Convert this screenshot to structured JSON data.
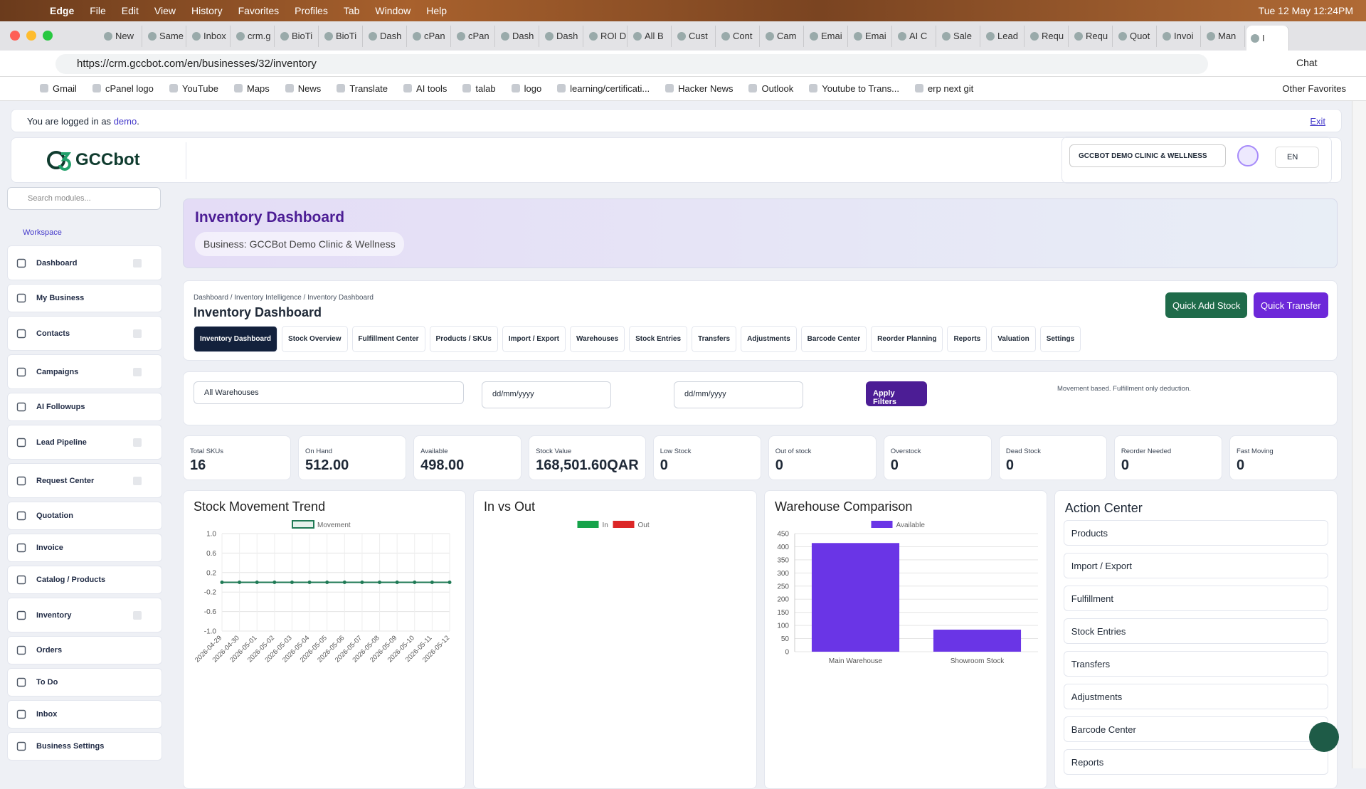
{
  "menubar": {
    "items": [
      "Edge",
      "File",
      "Edit",
      "View",
      "History",
      "Favorites",
      "Profiles",
      "Tab",
      "Window",
      "Help"
    ],
    "clock": "Tue 12 May  12:24PM"
  },
  "tabs": [
    "New",
    "Same",
    "Inbox",
    "crm.g",
    "BioTi",
    "BioTi",
    "Dash",
    "cPan",
    "cPan",
    "Dash",
    "Dash",
    "ROI D",
    "All B",
    "Cust",
    "Cont",
    "Cam",
    "Emai",
    "Emai",
    "AI C",
    "Sale",
    "Lead",
    "Requ",
    "Requ",
    "Quot",
    "Invoi",
    "Man",
    "I"
  ],
  "address": {
    "url": "https://crm.gccbot.com/en/businesses/32/inventory",
    "chat": "Chat"
  },
  "bookmarks": {
    "items": [
      "Gmail",
      "cPanel logo",
      "YouTube",
      "Maps",
      "News",
      "Translate",
      "AI tools",
      "talab",
      "logo",
      "learning/certificati...",
      "Hacker News",
      "Outlook",
      "Youtube to Trans...",
      "erp next git"
    ],
    "other": "Other Favorites"
  },
  "login": {
    "text": "You are logged in as",
    "user": "demo",
    "after": ".",
    "exit": "Exit"
  },
  "topbar": {
    "logo": "GCCbot",
    "business": "GCCBOT DEMO CLINIC & WELLNESS",
    "language": "EN"
  },
  "sidebar": {
    "search": "Search modules...",
    "section": "Workspace",
    "items": [
      {
        "label": "Dashboard",
        "expandable": true
      },
      {
        "label": "My Business",
        "expandable": false
      },
      {
        "label": "Contacts",
        "expandable": true
      },
      {
        "label": "Campaigns",
        "expandable": true
      },
      {
        "label": "AI Followups",
        "expandable": false
      },
      {
        "label": "Lead Pipeline",
        "expandable": true
      },
      {
        "label": "Request Center",
        "expandable": true
      },
      {
        "label": "Quotation",
        "expandable": false
      },
      {
        "label": "Invoice",
        "expandable": false
      },
      {
        "label": "Catalog / Products",
        "expandable": false
      },
      {
        "label": "Inventory",
        "expandable": true
      },
      {
        "label": "Orders",
        "expandable": false
      },
      {
        "label": "To Do",
        "expandable": false
      },
      {
        "label": "Inbox",
        "expandable": false
      },
      {
        "label": "Business Settings",
        "expandable": false
      }
    ]
  },
  "header": {
    "title": "Inventory Dashboard",
    "business": "Business: GCCBot Demo Clinic & Wellness"
  },
  "panel": {
    "breadcrumb": "Dashboard / Inventory Intelligence / Inventory Dashboard",
    "title": "Inventory Dashboard",
    "buttons": [
      "Quick Add Stock",
      "Quick Transfer"
    ],
    "tabs": [
      "Inventory Dashboard",
      "Stock Overview",
      "Fulfillment Center",
      "Products / SKUs",
      "Import / Export",
      "Warehouses",
      "Stock Entries",
      "Transfers",
      "Adjustments",
      "Barcode Center",
      "Reorder Planning",
      "Reports",
      "Valuation",
      "Settings"
    ]
  },
  "filters": {
    "warehouse": "All Warehouses",
    "date_from": "dd/mm/yyyy",
    "date_to": "dd/mm/yyyy",
    "apply": "Apply Filters",
    "note": "Movement based. Fulfillment only deduction."
  },
  "kpis": [
    {
      "label": "Total SKUs",
      "value": "16"
    },
    {
      "label": "On Hand",
      "value": "512.00"
    },
    {
      "label": "Available",
      "value": "498.00"
    },
    {
      "label": "Stock Value",
      "value": "168,501.60QAR"
    },
    {
      "label": "Low Stock",
      "value": "0"
    },
    {
      "label": "Out of stock",
      "value": "0"
    },
    {
      "label": "Overstock",
      "value": "0"
    },
    {
      "label": "Dead Stock",
      "value": "0"
    },
    {
      "label": "Reorder Needed",
      "value": "0"
    },
    {
      "label": "Fast Moving",
      "value": "0"
    }
  ],
  "chart_data": [
    {
      "type": "line",
      "title": "Stock Movement Trend",
      "categories": [
        "2026-04-29",
        "2026-04-30",
        "2026-05-01",
        "2026-05-02",
        "2026-05-03",
        "2026-05-04",
        "2026-05-05",
        "2026-05-06",
        "2026-05-07",
        "2026-05-08",
        "2026-05-09",
        "2026-05-10",
        "2026-05-11",
        "2026-05-12"
      ],
      "series": [
        {
          "name": "Movement",
          "color": "#1f7a55",
          "values": [
            0,
            0,
            0,
            0,
            0,
            0,
            0,
            0,
            0,
            0,
            0,
            0,
            0,
            0
          ]
        }
      ],
      "ylim": [
        -1,
        1
      ],
      "yticks": [
        {
          "value": -1,
          "label": "-1.0"
        },
        -0.6,
        -0.2,
        0.2,
        0.6,
        {
          "value": 1,
          "label": "1.0"
        }
      ],
      "grid": true
    },
    {
      "type": "bar",
      "title": "In vs Out",
      "categories": [],
      "series": [
        {
          "name": "In",
          "color": "#16a34a",
          "values": []
        },
        {
          "name": "Out",
          "color": "#dc2626",
          "values": []
        }
      ]
    },
    {
      "type": "bar",
      "title": "Warehouse Comparison",
      "categories": [
        "Main Warehouse",
        "Showroom Stock"
      ],
      "series": [
        {
          "name": "Available",
          "color": "#6a35e6",
          "values": [
            414,
            84
          ]
        }
      ],
      "ylim": [
        0,
        450
      ],
      "yticks": [
        0,
        50,
        100,
        150,
        200,
        250,
        300,
        350,
        400,
        450
      ],
      "grid": true
    }
  ],
  "action_center": {
    "title": "Action Center",
    "items": [
      "Products",
      "Import / Export",
      "Fulfillment",
      "Stock Entries",
      "Transfers",
      "Adjustments",
      "Barcode Center",
      "Reports"
    ]
  }
}
